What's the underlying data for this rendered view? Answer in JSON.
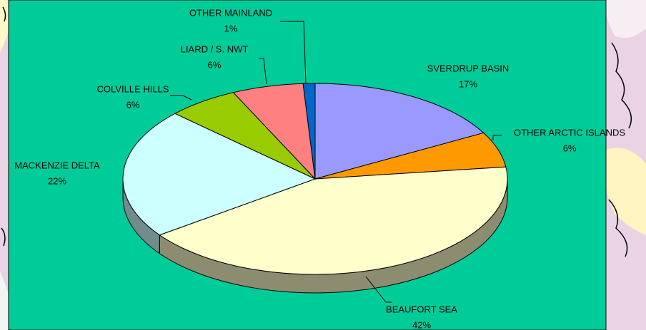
{
  "chart_data": {
    "type": "pie",
    "categories": [
      "SVERDRUP BASIN",
      "OTHER ARCTIC ISLANDS",
      "BEAUFORT SEA",
      "MACKENZIE DELTA",
      "COLVILLE HILLS",
      "LIARD / S. NWT",
      "OTHER MAINLAND"
    ],
    "values": [
      17,
      6,
      42,
      22,
      6,
      6,
      1
    ],
    "value_labels": [
      "17%",
      "6%",
      "42%",
      "22%",
      "6%",
      "6%",
      "1%"
    ],
    "colors": [
      "#9999ff",
      "#ff9900",
      "#ffffcc",
      "#ccffff",
      "#99cc00",
      "#ff8080",
      "#0066cc"
    ]
  }
}
